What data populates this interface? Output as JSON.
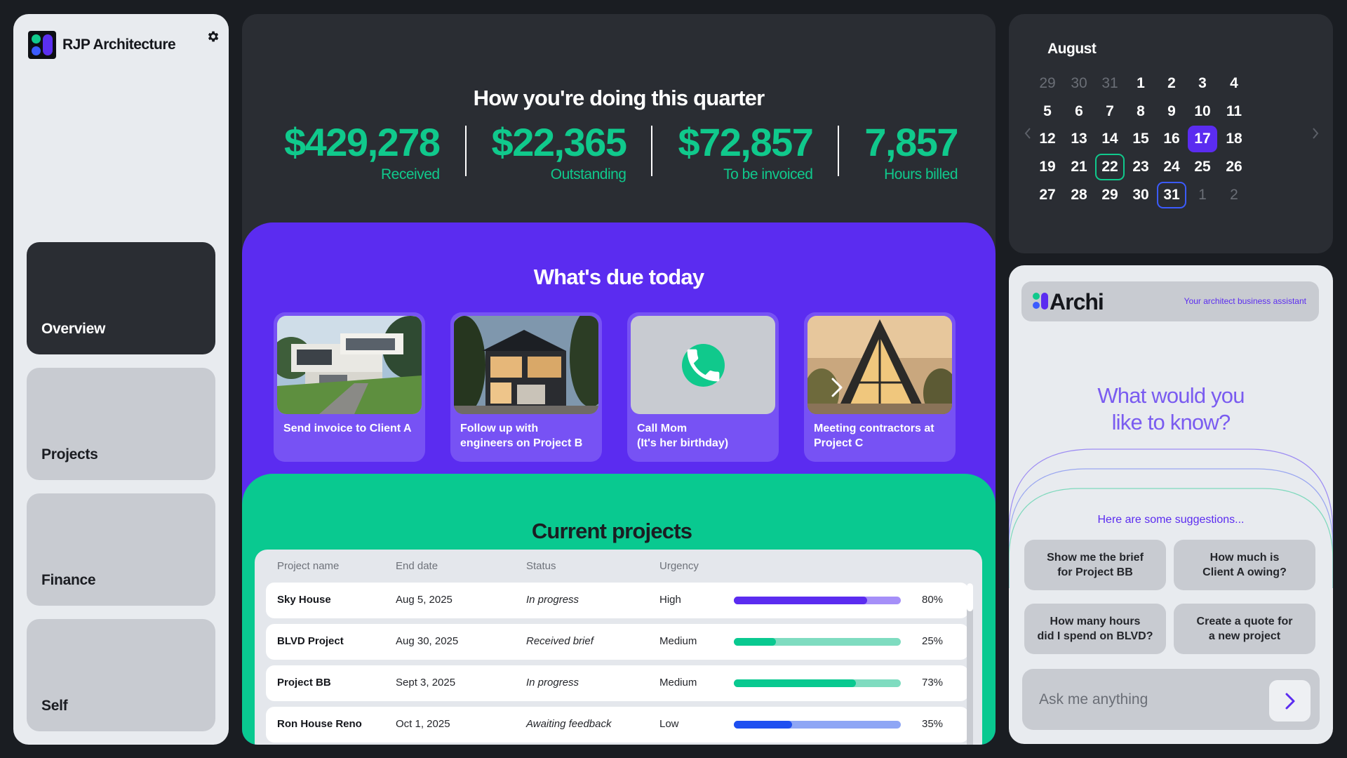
{
  "sidebar": {
    "brand": "RJP Architecture",
    "items": [
      {
        "label": "Overview"
      },
      {
        "label": "Projects"
      },
      {
        "label": "Finance"
      },
      {
        "label": "Self"
      }
    ]
  },
  "quarter": {
    "title": "How you're doing this quarter",
    "stats": [
      {
        "value": "$429,278",
        "label": "Received"
      },
      {
        "value": "$22,365",
        "label": "Outstanding"
      },
      {
        "value": "$72,857",
        "label": "To be invoiced"
      },
      {
        "value": "7,857",
        "label": "Hours billed"
      }
    ]
  },
  "due": {
    "title": "What's due today",
    "tasks": [
      {
        "caption": "Send invoice to Client A",
        "thumb": "modern-house-photo"
      },
      {
        "caption": "Follow up with\nengineers on Project B",
        "thumb": "house-dusk-photo"
      },
      {
        "caption": "Call Mom\n(It's her birthday)",
        "thumb": "phone-icon"
      },
      {
        "caption": "Meeting contractors at\nProject C",
        "thumb": "glass-house-photo"
      }
    ]
  },
  "projects": {
    "title": "Current projects",
    "columns": [
      "Project name",
      "End date",
      "Status",
      "Urgency"
    ],
    "rows": [
      {
        "name": "Sky House",
        "end_date": "Aug 5, 2025",
        "status": "In progress",
        "urgency": "High",
        "progress": 0.8,
        "progress_label": "80%",
        "color": "#5b2cf0",
        "track": "#a58ff8"
      },
      {
        "name": "BLVD Project",
        "end_date": "Aug 30, 2025",
        "status": "Received brief",
        "urgency": "Medium",
        "progress": 0.25,
        "progress_label": "25%",
        "color": "#09c990",
        "track": "#7fdcc0"
      },
      {
        "name": "Project BB",
        "end_date": "Sept 3, 2025",
        "status": "In progress",
        "urgency": "Medium",
        "progress": 0.73,
        "progress_label": "73%",
        "color": "#09c990",
        "track": "#7fdcc0"
      },
      {
        "name": "Ron House Reno",
        "end_date": "Oct 1, 2025",
        "status": "Awaiting feedback",
        "urgency": "Low",
        "progress": 0.35,
        "progress_label": "35%",
        "color": "#1e4ff0",
        "track": "#8ea6f5"
      }
    ]
  },
  "calendar": {
    "month": "August",
    "weeks": [
      [
        "29",
        "30",
        "31",
        "1",
        "2",
        "3",
        "4"
      ],
      [
        "5",
        "6",
        "7",
        "8",
        "9",
        "10",
        "11"
      ],
      [
        "12",
        "13",
        "14",
        "15",
        "16",
        "17",
        "18"
      ],
      [
        "19",
        "21",
        "22",
        "23",
        "24",
        "25",
        "26"
      ],
      [
        "27",
        "28",
        "29",
        "30",
        "31",
        "1",
        "2"
      ]
    ],
    "muted": [
      [
        0,
        0
      ],
      [
        0,
        1
      ],
      [
        0,
        2
      ],
      [
        4,
        5
      ],
      [
        4,
        6
      ]
    ],
    "selected": [
      2,
      5
    ],
    "today": [
      3,
      2
    ],
    "marked": [
      4,
      4
    ]
  },
  "assistant": {
    "name": "Archi",
    "tagline": "Your architect business assistant",
    "question": "What would you\nlike to know?",
    "suggestions_label": "Here are some suggestions...",
    "suggestions": [
      "Show me the brief\nfor Project BB",
      "How much is\nClient A owing?",
      "How many hours\ndid I spend on BLVD?",
      "Create a quote for\na new project"
    ],
    "input_placeholder": "Ask me anything"
  }
}
